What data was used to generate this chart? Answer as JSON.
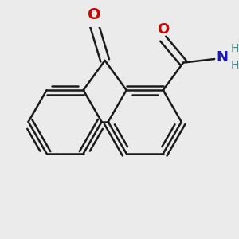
{
  "background_color": "#ebebeb",
  "bond_color": "#1a1a1a",
  "oxygen_color": "#cc0000",
  "nitrogen_color": "#1a1aaa",
  "hydrogen_color": "#4a8888",
  "bond_width": 1.8,
  "figsize": [
    3.0,
    3.0
  ],
  "dpi": 100,
  "xlim": [
    -2.8,
    3.2
  ],
  "ylim": [
    -2.8,
    2.4
  ]
}
